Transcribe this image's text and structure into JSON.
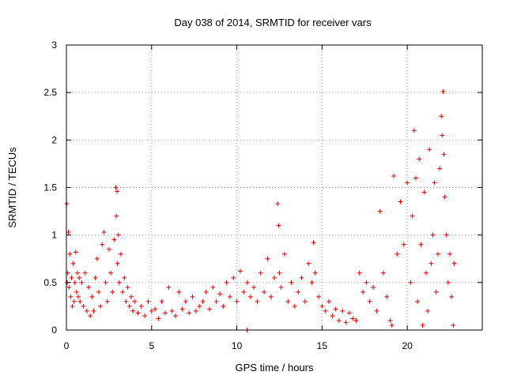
{
  "chart_data": {
    "type": "scatter",
    "title": "Day 038 of 2014, SRMTID for receiver vars",
    "xlabel": "GPS time / hours",
    "ylabel": "SRMTID / TECUs",
    "xlim": [
      0,
      24.4
    ],
    "ylim": [
      0,
      3
    ],
    "xticks": [
      0,
      5,
      10,
      15,
      20
    ],
    "yticks": [
      0,
      0.5,
      1,
      1.5,
      2,
      2.5,
      3
    ],
    "xtick_labels": [
      "0",
      "5",
      "10",
      "15",
      "20"
    ],
    "ytick_labels": [
      "0",
      "0.5",
      "1",
      "1.5",
      "2",
      "2.5",
      "3"
    ],
    "grid": true,
    "marker": "+",
    "color": "#e00000",
    "series": [
      {
        "name": "SRMTID",
        "x": [
          0.02,
          0.05,
          0.08,
          0.12,
          0.15,
          0.2,
          0.25,
          0.3,
          0.35,
          0.4,
          0.45,
          0.5,
          0.55,
          0.6,
          0.65,
          0.7,
          0.75,
          0.8,
          0.9,
          1.0,
          1.1,
          1.2,
          1.3,
          1.4,
          1.5,
          1.6,
          1.7,
          1.8,
          1.9,
          2.0,
          2.1,
          2.2,
          2.3,
          2.4,
          2.5,
          2.6,
          2.7,
          2.8,
          2.9,
          2.93,
          2.97,
          3.0,
          3.05,
          3.1,
          3.2,
          3.3,
          3.4,
          3.5,
          3.6,
          3.7,
          3.8,
          3.9,
          4.0,
          4.2,
          4.4,
          4.6,
          4.8,
          5.0,
          5.2,
          5.4,
          5.6,
          5.8,
          6.0,
          6.2,
          6.4,
          6.6,
          6.8,
          7.0,
          7.2,
          7.4,
          7.6,
          7.8,
          8.0,
          8.2,
          8.4,
          8.6,
          8.8,
          9.0,
          9.2,
          9.4,
          9.6,
          9.8,
          10.0,
          10.2,
          10.4,
          10.6,
          10.62,
          10.8,
          11.0,
          11.2,
          11.4,
          11.6,
          11.8,
          12.0,
          12.2,
          12.4,
          12.45,
          12.5,
          12.6,
          12.8,
          13.0,
          13.2,
          13.4,
          13.6,
          13.8,
          14.0,
          14.2,
          14.4,
          14.5,
          14.6,
          14.8,
          15.0,
          15.2,
          15.4,
          15.6,
          15.8,
          16.0,
          16.2,
          16.4,
          16.6,
          16.8,
          17.0,
          17.2,
          17.4,
          17.6,
          17.8,
          18.0,
          18.2,
          18.4,
          18.6,
          18.8,
          19.0,
          19.1,
          19.2,
          19.4,
          19.6,
          19.8,
          20.0,
          20.2,
          20.3,
          20.4,
          20.5,
          20.6,
          20.7,
          20.8,
          20.9,
          21.0,
          21.1,
          21.2,
          21.3,
          21.4,
          21.5,
          21.6,
          21.7,
          21.8,
          21.9,
          22.0,
          22.05,
          22.1,
          22.15,
          22.2,
          22.3,
          22.4,
          22.5,
          22.6,
          22.7,
          22.75
        ],
        "y": [
          1.33,
          0.5,
          0.6,
          1.03,
          0.45,
          0.8,
          0.35,
          0.55,
          0.25,
          0.7,
          0.3,
          0.5,
          0.82,
          0.4,
          0.6,
          0.35,
          0.55,
          0.3,
          0.5,
          0.25,
          0.6,
          0.2,
          0.45,
          0.15,
          0.35,
          0.2,
          0.55,
          0.75,
          0.4,
          0.25,
          0.9,
          1.03,
          0.5,
          0.3,
          0.85,
          0.6,
          0.4,
          0.95,
          1.5,
          1.2,
          1.46,
          0.7,
          1.0,
          0.5,
          0.8,
          0.4,
          0.55,
          0.3,
          0.45,
          0.25,
          0.35,
          0.2,
          0.3,
          0.18,
          0.25,
          0.15,
          0.3,
          0.2,
          0.22,
          0.12,
          0.3,
          0.18,
          0.45,
          0.2,
          0.15,
          0.4,
          0.22,
          0.3,
          0.18,
          0.35,
          0.2,
          0.25,
          0.3,
          0.4,
          0.22,
          0.45,
          0.3,
          0.38,
          0.25,
          0.5,
          0.35,
          0.55,
          0.3,
          0.62,
          0.4,
          0.0,
          0.5,
          0.35,
          0.45,
          0.3,
          0.6,
          0.4,
          0.75,
          0.35,
          0.55,
          1.33,
          1.1,
          0.6,
          0.45,
          0.8,
          0.3,
          0.5,
          0.25,
          0.4,
          0.55,
          0.3,
          0.7,
          0.5,
          0.92,
          0.6,
          0.35,
          0.25,
          0.2,
          0.3,
          0.15,
          0.22,
          0.1,
          0.2,
          0.08,
          0.18,
          0.12,
          0.1,
          0.6,
          0.4,
          0.5,
          0.3,
          0.45,
          0.2,
          1.25,
          0.6,
          0.35,
          0.1,
          0.05,
          1.62,
          0.8,
          1.35,
          0.9,
          1.55,
          0.5,
          1.2,
          2.1,
          1.6,
          0.3,
          1.8,
          0.9,
          0.05,
          1.45,
          0.6,
          0.2,
          1.9,
          0.7,
          1.0,
          1.55,
          0.4,
          0.8,
          1.7,
          2.25,
          2.05,
          2.51,
          1.85,
          1.4,
          1.0,
          0.5,
          0.8,
          0.35,
          0.05,
          0.7
        ]
      }
    ]
  }
}
